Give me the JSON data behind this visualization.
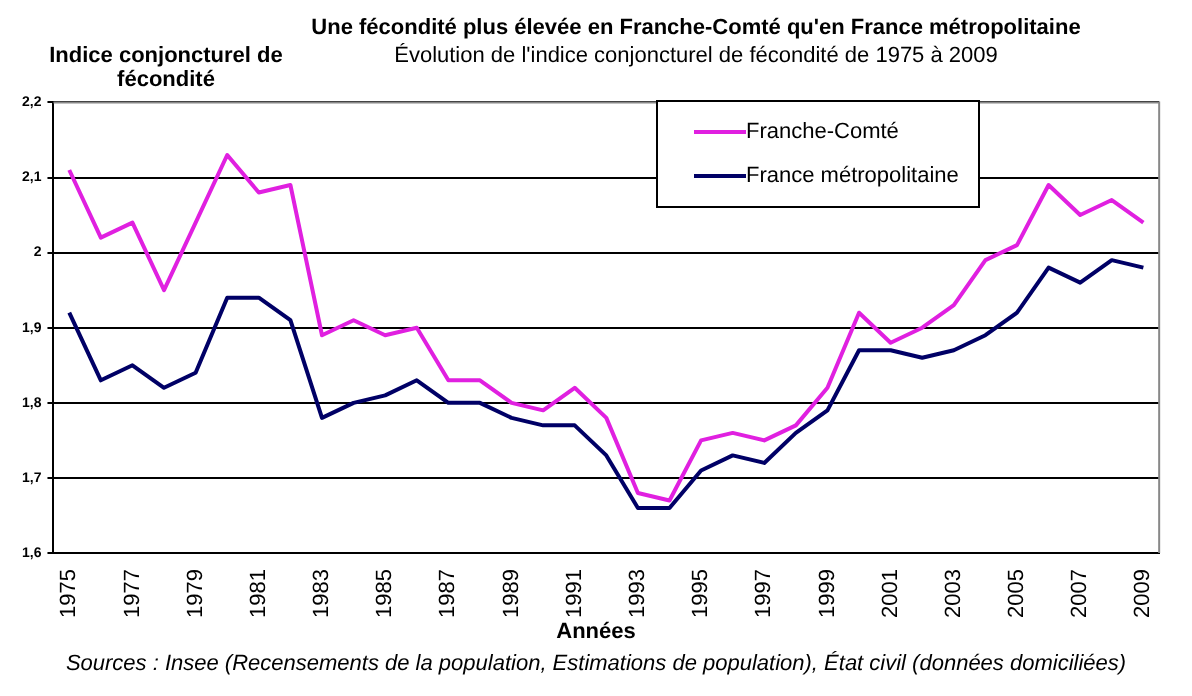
{
  "chart_data": {
    "type": "line",
    "title": "Une fécondité plus élevée en Franche-Comté qu'en France métropolitaine",
    "subtitle": "Évolution de l'indice conjoncturel de fécondité de 1975 à 2009",
    "ylabel": "Indice conjoncturel de fécondité",
    "xlabel": "Années",
    "annotations": [
      "Sources : Insee (Recensements de la population, Estimations de population), État civil (données domiciliées)"
    ],
    "categories": [
      "1975",
      null,
      "1977",
      null,
      "1979",
      null,
      "1981",
      null,
      "1983",
      null,
      "1985",
      null,
      "1987",
      null,
      "1989",
      null,
      "1991",
      null,
      "1993",
      null,
      "1995",
      null,
      "1997",
      null,
      "1999",
      null,
      "2001",
      null,
      "2003",
      null,
      "2005",
      null,
      "2007",
      null,
      "2009"
    ],
    "series": [
      {
        "name": "Franche-Comté",
        "color": "#e020e0",
        "values": [
          2.11,
          2.02,
          2.04,
          1.95,
          2.04,
          2.13,
          2.08,
          2.09,
          1.89,
          1.91,
          1.89,
          1.9,
          1.83,
          1.83,
          1.8,
          1.79,
          1.82,
          1.78,
          1.68,
          1.67,
          1.75,
          1.76,
          1.75,
          1.77,
          1.82,
          1.92,
          1.88,
          1.9,
          1.93,
          1.99,
          2.01,
          2.09,
          2.05,
          2.07,
          2.04
        ]
      },
      {
        "name": "France métropolitaine",
        "color": "#000066",
        "values": [
          1.92,
          1.83,
          1.85,
          1.82,
          1.84,
          1.94,
          1.94,
          1.91,
          1.78,
          1.8,
          1.81,
          1.83,
          1.8,
          1.8,
          1.78,
          1.77,
          1.77,
          1.73,
          1.66,
          1.66,
          1.71,
          1.73,
          1.72,
          1.76,
          1.79,
          1.87,
          1.87,
          1.86,
          1.87,
          1.89,
          1.92,
          1.98,
          1.96,
          1.99,
          1.98
        ]
      }
    ],
    "ylim": [
      1.6,
      2.2
    ],
    "yticks": [
      {
        "value": 1.6,
        "label": "1,6"
      },
      {
        "value": 1.7,
        "label": "1,7"
      },
      {
        "value": 1.8,
        "label": "1,8"
      },
      {
        "value": 1.9,
        "label": "1,9"
      },
      2,
      {
        "value": 2.1,
        "label": "2,1"
      },
      {
        "value": 2.2,
        "label": "2,2"
      }
    ],
    "grid": "y",
    "legend": "top right",
    "marker": "none",
    "line_style": "solid"
  }
}
